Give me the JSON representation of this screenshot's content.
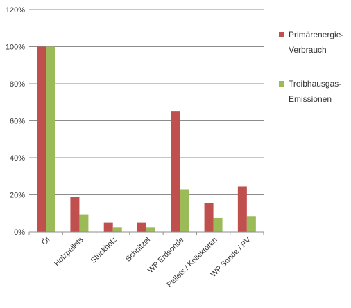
{
  "chart_data": {
    "type": "bar",
    "title": "",
    "xlabel": "",
    "ylabel": "",
    "ylim": [
      0,
      120
    ],
    "y_unit": "%",
    "y_ticks": [
      "0%",
      "20%",
      "40%",
      "60%",
      "80%",
      "100%",
      "120%"
    ],
    "grid": true,
    "legend_position": "right",
    "categories": [
      "Öl",
      "Holzpellets",
      "Stückholz",
      "Schnitzel",
      "WP Erdsonde",
      "Pellets / Kollektoren",
      "WP Sonde / PV"
    ],
    "series": [
      {
        "name_lines": [
          "Primärenergie-",
          "Verbrauch"
        ],
        "color": "#C0504D",
        "values": [
          100,
          19,
          5,
          5,
          65,
          15.5,
          24.5
        ]
      },
      {
        "name_lines": [
          "Treibhausgas-",
          "Emissionen"
        ],
        "color": "#9BBB59",
        "values": [
          100,
          9.5,
          2.5,
          2.5,
          23,
          7.5,
          8.5
        ]
      }
    ]
  }
}
